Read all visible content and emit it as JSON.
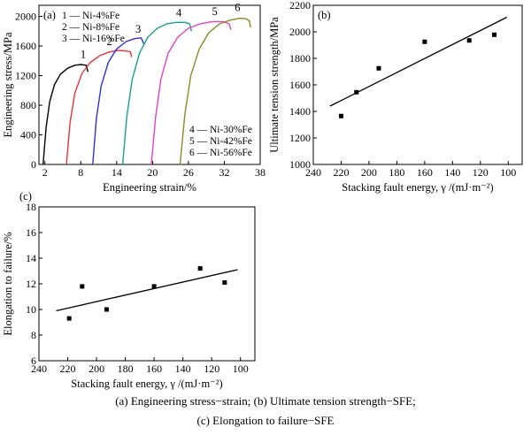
{
  "captions": {
    "line1": "(a)   Engineering  stress−strain; (b)  Ultimate tension strength−SFE;",
    "line2": "(c) Elongation to failure−SFE"
  },
  "chart_data": [
    {
      "panel": "(a)",
      "type": "line",
      "xlabel": "Engineering strain/%",
      "ylabel": "Engineering stress/MPa",
      "xlim": [
        1,
        38
      ],
      "ylim": [
        0,
        2150
      ],
      "xticks": [
        2,
        8,
        14,
        20,
        26,
        32,
        38
      ],
      "yticks": [
        0,
        400,
        800,
        1200,
        1600,
        2000
      ],
      "legend_top": [
        "1 — Ni-4%Fe",
        "2 — Ni-8%Fe",
        "3 — Ni-16%Fe"
      ],
      "legend_bottom": [
        "4 — Ni-30%Fe",
        "5 — Ni-42%Fe",
        "6 — Ni-56%Fe"
      ],
      "series": [
        {
          "name": "1",
          "color": "#000000",
          "x": [
            1.7,
            2.2,
            2.8,
            3.6,
            4.6,
            5.8,
            7.0,
            8.0,
            8.9,
            9.2
          ],
          "y": [
            0,
            500,
            850,
            1080,
            1220,
            1300,
            1340,
            1350,
            1340,
            1250
          ]
        },
        {
          "name": "2",
          "color": "#e8333a",
          "x": [
            5.6,
            6.2,
            7.0,
            8.2,
            9.6,
            11.2,
            12.8,
            14.2,
            15.4,
            16.3,
            16.5
          ],
          "y": [
            0,
            560,
            960,
            1230,
            1380,
            1470,
            1520,
            1540,
            1535,
            1520,
            1450
          ]
        },
        {
          "name": "3",
          "color": "#2f2fd8",
          "x": [
            10.0,
            10.6,
            11.4,
            12.6,
            14.0,
            15.6,
            17.0,
            18.1,
            18.6
          ],
          "y": [
            0,
            620,
            1060,
            1380,
            1560,
            1660,
            1700,
            1710,
            1620
          ]
        },
        {
          "name": "4",
          "color": "#19a08a",
          "x": [
            15.0,
            15.7,
            16.6,
            17.8,
            19.2,
            20.8,
            22.4,
            24.0,
            25.4,
            26.2,
            26.5
          ],
          "y": [
            0,
            650,
            1150,
            1500,
            1720,
            1840,
            1900,
            1920,
            1920,
            1900,
            1800
          ]
        },
        {
          "name": "5",
          "color": "#e040c8",
          "x": [
            19.8,
            20.5,
            21.4,
            22.6,
            24.2,
            26.0,
            28.0,
            30.0,
            31.8,
            32.8,
            33.1
          ],
          "y": [
            0,
            640,
            1150,
            1500,
            1720,
            1840,
            1900,
            1930,
            1930,
            1900,
            1820
          ]
        },
        {
          "name": "6",
          "color": "#8b8b2a",
          "x": [
            24.6,
            25.4,
            26.4,
            27.8,
            29.4,
            31.2,
            33.0,
            34.6,
            35.6,
            36.2,
            36.4
          ],
          "y": [
            0,
            680,
            1200,
            1560,
            1780,
            1900,
            1950,
            1975,
            1970,
            1940,
            1850
          ]
        }
      ],
      "curve_labels": [
        {
          "text": "1",
          "x": 8.4,
          "y": 1440
        },
        {
          "text": "2",
          "x": 12.8,
          "y": 1610
        },
        {
          "text": "3",
          "x": 17.6,
          "y": 1780
        },
        {
          "text": "4",
          "x": 24.4,
          "y": 2000
        },
        {
          "text": "5",
          "x": 30.4,
          "y": 2020
        },
        {
          "text": "6",
          "x": 34.2,
          "y": 2070
        }
      ]
    },
    {
      "panel": "(b)",
      "type": "scatter",
      "xlabel": "Stacking fault energy, γ /(mJ·m⁻²)",
      "ylabel": "Ultimate tension strength/MPa",
      "xlim": [
        240,
        90
      ],
      "ylim": [
        1000,
        2200
      ],
      "xticks": [
        240,
        220,
        200,
        180,
        160,
        140,
        120,
        100
      ],
      "yticks": [
        1000,
        1200,
        1400,
        1600,
        1800,
        2000,
        2200
      ],
      "points": [
        {
          "x": 220,
          "y": 1365
        },
        {
          "x": 209,
          "y": 1545
        },
        {
          "x": 193,
          "y": 1725
        },
        {
          "x": 160,
          "y": 1925
        },
        {
          "x": 128,
          "y": 1935
        },
        {
          "x": 110,
          "y": 1978
        }
      ],
      "fit_line": {
        "x": [
          228,
          101
        ],
        "y": [
          1440,
          2110
        ]
      }
    },
    {
      "panel": "(c)",
      "type": "scatter",
      "xlabel": "Stacking fault energy, γ /(mJ·m⁻²)",
      "ylabel": "Elongation to failure/%",
      "xlim": [
        240,
        90
      ],
      "ylim": [
        6,
        18
      ],
      "xticks": [
        240,
        220,
        200,
        180,
        160,
        140,
        120,
        100
      ],
      "yticks": [
        6,
        8,
        10,
        12,
        14,
        16,
        18
      ],
      "points": [
        {
          "x": 219,
          "y": 9.3
        },
        {
          "x": 210,
          "y": 11.8
        },
        {
          "x": 193,
          "y": 10.0
        },
        {
          "x": 160,
          "y": 11.8
        },
        {
          "x": 128,
          "y": 13.2
        },
        {
          "x": 111,
          "y": 12.1
        }
      ],
      "fit_line": {
        "x": [
          228,
          102
        ],
        "y": [
          9.9,
          13.1
        ]
      }
    }
  ]
}
